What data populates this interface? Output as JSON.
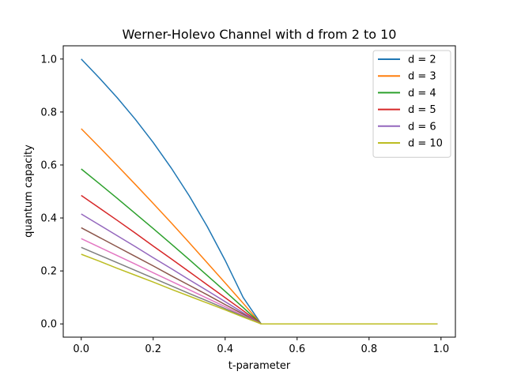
{
  "chart_data": {
    "type": "line",
    "title": "Werner-Holevo Channel with d from 2 to 10",
    "xlabel": "t-parameter",
    "ylabel": "quantum capacity",
    "xlim": [
      -0.05,
      1.04
    ],
    "ylim": [
      -0.05,
      1.05
    ],
    "xticks": [
      "0.0",
      "0.2",
      "0.4",
      "0.6",
      "0.8",
      "1.0"
    ],
    "yticks": [
      "0.0",
      "0.2",
      "0.4",
      "0.6",
      "0.8",
      "1.0"
    ],
    "grid": false,
    "legend_position": "top-right",
    "x": [
      0.0,
      0.05,
      0.1,
      0.15,
      0.2,
      0.25,
      0.3,
      0.35,
      0.4,
      0.45,
      0.5,
      0.55,
      0.6,
      0.65,
      0.7,
      0.75,
      0.8,
      0.85,
      0.9,
      0.95,
      0.99
    ],
    "series": [
      {
        "name": "d = 2",
        "color": "#1f77b4",
        "values": [
          1.0,
          0.929,
          0.854,
          0.773,
          0.685,
          0.589,
          0.484,
          0.368,
          0.24,
          0.1,
          0.0,
          0.0,
          0.0,
          0.0,
          0.0,
          0.0,
          0.0,
          0.0,
          0.0,
          0.0,
          0.0
        ]
      },
      {
        "name": "d = 3",
        "color": "#ff7f0e",
        "values": [
          0.737,
          0.668,
          0.598,
          0.527,
          0.455,
          0.382,
          0.307,
          0.231,
          0.155,
          0.078,
          0.0,
          0.0,
          0.0,
          0.0,
          0.0,
          0.0,
          0.0,
          0.0,
          0.0,
          0.0,
          0.0
        ]
      },
      {
        "name": "d = 4",
        "color": "#2ca02c",
        "values": [
          0.585,
          0.53,
          0.474,
          0.417,
          0.36,
          0.302,
          0.243,
          0.183,
          0.123,
          0.062,
          0.0,
          0.0,
          0.0,
          0.0,
          0.0,
          0.0,
          0.0,
          0.0,
          0.0,
          0.0,
          0.0
        ]
      },
      {
        "name": "d = 5",
        "color": "#d62728",
        "values": [
          0.485,
          0.438,
          0.391,
          0.343,
          0.294,
          0.246,
          0.197,
          0.148,
          0.099,
          0.05,
          0.0,
          0.0,
          0.0,
          0.0,
          0.0,
          0.0,
          0.0,
          0.0,
          0.0,
          0.0,
          0.0
        ]
      },
      {
        "name": "d = 6",
        "color": "#9467bd",
        "values": [
          0.415,
          0.374,
          0.333,
          0.292,
          0.25,
          0.209,
          0.167,
          0.126,
          0.084,
          0.042,
          0.0,
          0.0,
          0.0,
          0.0,
          0.0,
          0.0,
          0.0,
          0.0,
          0.0,
          0.0,
          0.0
        ]
      },
      {
        "color": "#8c564b",
        "values": [
          0.363,
          0.327,
          0.291,
          0.255,
          0.219,
          0.182,
          0.146,
          0.11,
          0.073,
          0.037,
          0.0,
          0.0,
          0.0,
          0.0,
          0.0,
          0.0,
          0.0,
          0.0,
          0.0,
          0.0,
          0.0
        ]
      },
      {
        "color": "#e377c2",
        "values": [
          0.322,
          0.29,
          0.258,
          0.226,
          0.193,
          0.161,
          0.129,
          0.097,
          0.065,
          0.032,
          0.0,
          0.0,
          0.0,
          0.0,
          0.0,
          0.0,
          0.0,
          0.0,
          0.0,
          0.0,
          0.0
        ]
      },
      {
        "color": "#7f7f7f",
        "values": [
          0.289,
          0.26,
          0.231,
          0.202,
          0.173,
          0.144,
          0.115,
          0.087,
          0.058,
          0.029,
          0.0,
          0.0,
          0.0,
          0.0,
          0.0,
          0.0,
          0.0,
          0.0,
          0.0,
          0.0,
          0.0
        ]
      },
      {
        "color": "#bcbd22",
        "values": [
          0.263,
          0.237,
          0.21,
          0.184,
          0.158,
          0.131,
          0.105,
          0.079,
          0.053,
          0.026,
          0.0,
          0.0,
          0.0,
          0.0,
          0.0,
          0.0,
          0.0,
          0.0,
          0.0,
          0.0,
          0.0
        ]
      }
    ],
    "legend": [
      {
        "label": "d = 2",
        "color": "#1f77b4"
      },
      {
        "label": "d = 3",
        "color": "#ff7f0e"
      },
      {
        "label": "d = 4",
        "color": "#2ca02c"
      },
      {
        "label": "d = 5",
        "color": "#d62728"
      },
      {
        "label": "d = 6",
        "color": "#9467bd"
      },
      {
        "label": "d = 10",
        "color": "#bcbd22"
      }
    ]
  }
}
